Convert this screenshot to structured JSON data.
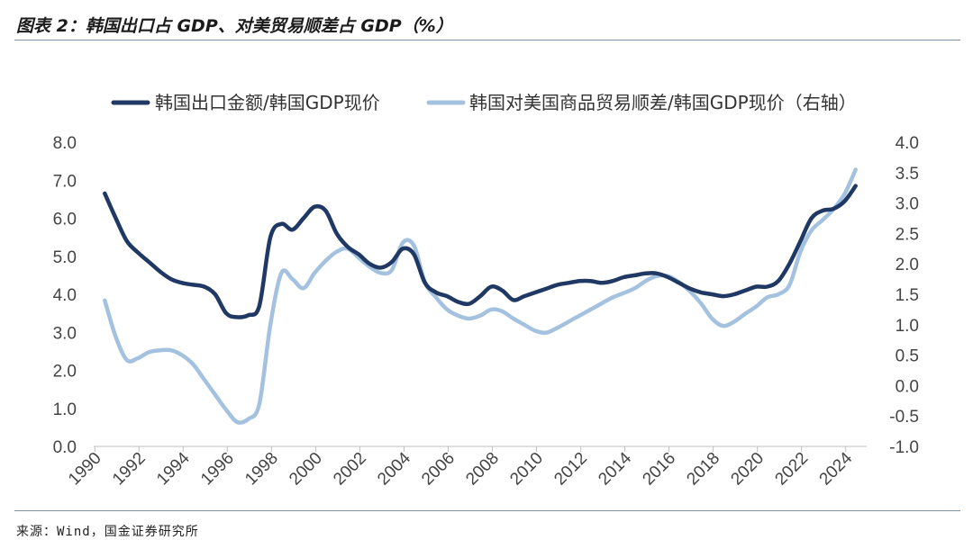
{
  "header": {
    "title": "图表 2：韩国出口占 GDP、对美贸易顺差占 GDP（%）"
  },
  "footer": {
    "source": "来源：Wind，国金证券研究所"
  },
  "chart_data": {
    "type": "line",
    "title": "图表 2：韩国出口占 GDP、对美贸易顺差占 GDP（%）",
    "legend_position": "top",
    "grid": false,
    "x_ticks": [
      "1990",
      "1992",
      "1994",
      "1996",
      "1998",
      "2000",
      "2002",
      "2004",
      "2006",
      "2008",
      "2010",
      "2012",
      "2014",
      "2016",
      "2018",
      "2020",
      "2022",
      "2024"
    ],
    "y_left": {
      "range": [
        0,
        8
      ],
      "ticks": [
        "0.0",
        "1.0",
        "2.0",
        "3.0",
        "4.0",
        "5.0",
        "6.0",
        "7.0",
        "8.0"
      ]
    },
    "y_right": {
      "range": [
        -1,
        4
      ],
      "ticks": [
        "-1.0",
        "-0.5",
        "0.0",
        "0.5",
        "1.0",
        "1.5",
        "2.0",
        "2.5",
        "3.0",
        "3.5",
        "4.0"
      ]
    },
    "series": [
      {
        "name": "韩国出口金额/韩国GDP现价",
        "axis": "left",
        "color": "#1f3864",
        "x": [
          1990.5,
          1991,
          1991.5,
          1992,
          1992.5,
          1993,
          1993.5,
          1994,
          1994.5,
          1995,
          1995.5,
          1996,
          1996.5,
          1997,
          1997.5,
          1998,
          1998.5,
          1999,
          1999.5,
          2000,
          2000.5,
          2001,
          2001.5,
          2002,
          2002.5,
          2003,
          2003.5,
          2004,
          2004.5,
          2005,
          2005.5,
          2006,
          2006.5,
          2007,
          2007.5,
          2008,
          2008.5,
          2009,
          2009.5,
          2010,
          2010.5,
          2011,
          2011.5,
          2012,
          2012.5,
          2013,
          2013.5,
          2014,
          2014.5,
          2015,
          2015.5,
          2016,
          2016.5,
          2017,
          2017.5,
          2018,
          2018.5,
          2019,
          2019.5,
          2020,
          2020.5,
          2021,
          2021.5,
          2022,
          2022.5,
          2023,
          2023.5,
          2024,
          2024.5
        ],
        "values": [
          6.65,
          6.0,
          5.4,
          5.1,
          4.85,
          4.6,
          4.4,
          4.3,
          4.25,
          4.2,
          4.0,
          3.5,
          3.4,
          3.45,
          3.7,
          5.5,
          5.85,
          5.7,
          6.0,
          6.3,
          6.2,
          5.6,
          5.25,
          5.05,
          4.8,
          4.7,
          4.85,
          5.2,
          5.05,
          4.3,
          4.05,
          3.95,
          3.8,
          3.75,
          3.95,
          4.2,
          4.1,
          3.85,
          3.95,
          4.05,
          4.15,
          4.25,
          4.3,
          4.35,
          4.35,
          4.3,
          4.35,
          4.45,
          4.5,
          4.55,
          4.55,
          4.45,
          4.3,
          4.15,
          4.05,
          4.0,
          3.95,
          4.0,
          4.1,
          4.2,
          4.2,
          4.35,
          4.8,
          5.4,
          6.0,
          6.2,
          6.25,
          6.45,
          6.85
        ]
      },
      {
        "name": "韩国对美国商品贸易顺差/韩国GDP现价（右轴）",
        "axis": "right",
        "color": "#a4c2e0",
        "x": [
          1990.5,
          1991,
          1991.5,
          1992,
          1992.5,
          1993,
          1993.5,
          1994,
          1994.5,
          1995,
          1995.5,
          1996,
          1996.5,
          1997,
          1997.5,
          1998,
          1998.5,
          1999,
          1999.5,
          2000,
          2000.5,
          2001,
          2001.5,
          2002,
          2002.5,
          2003,
          2003.5,
          2004,
          2004.5,
          2005,
          2005.5,
          2006,
          2006.5,
          2007,
          2007.5,
          2008,
          2008.5,
          2009,
          2009.5,
          2010,
          2010.5,
          2011,
          2011.5,
          2012,
          2012.5,
          2013,
          2013.5,
          2014,
          2014.5,
          2015,
          2015.5,
          2016,
          2016.5,
          2017,
          2017.5,
          2018,
          2018.5,
          2019,
          2019.5,
          2020,
          2020.5,
          2021,
          2021.5,
          2022,
          2022.5,
          2023,
          2023.5,
          2024,
          2024.5
        ],
        "values": [
          1.4,
          0.8,
          0.42,
          0.45,
          0.55,
          0.58,
          0.58,
          0.5,
          0.35,
          0.1,
          -0.15,
          -0.4,
          -0.6,
          -0.55,
          -0.3,
          1.0,
          1.85,
          1.75,
          1.6,
          1.85,
          2.05,
          2.2,
          2.25,
          2.1,
          1.95,
          1.85,
          1.9,
          2.35,
          2.3,
          1.7,
          1.45,
          1.25,
          1.15,
          1.1,
          1.15,
          1.25,
          1.22,
          1.1,
          1.0,
          0.9,
          0.87,
          0.95,
          1.05,
          1.15,
          1.25,
          1.35,
          1.45,
          1.52,
          1.6,
          1.72,
          1.8,
          1.8,
          1.7,
          1.55,
          1.35,
          1.1,
          0.98,
          1.05,
          1.18,
          1.3,
          1.45,
          1.5,
          1.65,
          2.2,
          2.55,
          2.72,
          2.9,
          3.15,
          3.55
        ]
      }
    ]
  }
}
